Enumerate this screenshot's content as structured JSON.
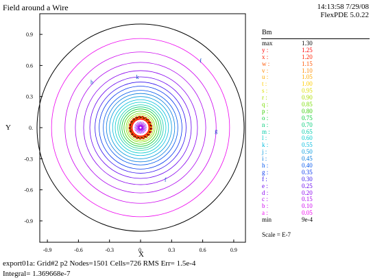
{
  "header": {
    "title": "Field around a Wire",
    "timestamp": "14:13:58 7/29/08",
    "version": "FlexPDE 5.0.22"
  },
  "footer": {
    "line1": "export01a:  Grid#2  p2  Nodes=1501 Cells=726 RMS Err= 1.5e-4",
    "line2": "Integral=  1.369668e-7"
  },
  "legend": {
    "title": "Bm",
    "scale_text": "Scale = E-7",
    "entries": [
      {
        "label": "max",
        "value": "1.30",
        "color": "#000000"
      },
      {
        "label": "y :",
        "value": "1.25",
        "color": "#ff0000"
      },
      {
        "label": "x :",
        "value": "1.20",
        "color": "#ff2200"
      },
      {
        "label": "w :",
        "value": "1.15",
        "color": "#ff5500"
      },
      {
        "label": "v :",
        "value": "1.10",
        "color": "#ff8800"
      },
      {
        "label": "u :",
        "value": "1.05",
        "color": "#ffaa00"
      },
      {
        "label": "t :",
        "value": "1.00",
        "color": "#ffcc00"
      },
      {
        "label": "s :",
        "value": "0.95",
        "color": "#dddd00"
      },
      {
        "label": "r :",
        "value": "0.90",
        "color": "#aadd00"
      },
      {
        "label": "q :",
        "value": "0.85",
        "color": "#77dd00"
      },
      {
        "label": "p :",
        "value": "0.80",
        "color": "#33cc00"
      },
      {
        "label": "o :",
        "value": "0.75",
        "color": "#00cc33"
      },
      {
        "label": "n :",
        "value": "0.70",
        "color": "#00cc77"
      },
      {
        "label": "m :",
        "value": "0.65",
        "color": "#00ccaa"
      },
      {
        "label": "l :",
        "value": "0.60",
        "color": "#00cccc"
      },
      {
        "label": "k :",
        "value": "0.55",
        "color": "#00bbdd"
      },
      {
        "label": "j :",
        "value": "0.50",
        "color": "#0099dd"
      },
      {
        "label": "i :",
        "value": "0.45",
        "color": "#0077dd"
      },
      {
        "label": "h :",
        "value": "0.40",
        "color": "#0055ee"
      },
      {
        "label": "g :",
        "value": "0.35",
        "color": "#0033ee"
      },
      {
        "label": "f :",
        "value": "0.30",
        "color": "#3311ee"
      },
      {
        "label": "e :",
        "value": "0.25",
        "color": "#6600ee"
      },
      {
        "label": "d :",
        "value": "0.20",
        "color": "#8800ee"
      },
      {
        "label": "c :",
        "value": "0.15",
        "color": "#aa00ee"
      },
      {
        "label": "b :",
        "value": "0.10",
        "color": "#cc00ee"
      },
      {
        "label": "a :",
        "value": "0.05",
        "color": "#ee00ee"
      },
      {
        "label": "min",
        "value": "9e-4",
        "color": "#000000"
      }
    ]
  },
  "chart_data": {
    "type": "contour",
    "xlabel": "X",
    "ylabel": "Y",
    "xlim": [
      -1.05,
      1.05
    ],
    "ylim": [
      -1.05,
      1.05
    ],
    "xticks": [
      -0.9,
      -0.6,
      -0.3,
      0,
      0.3,
      0.6,
      0.9
    ],
    "xtick_labels": [
      "-0.9",
      "-0.6",
      "-0.3",
      "0.",
      "0.3",
      "0.6",
      "0.9"
    ],
    "yticks": [
      0.9,
      0.6,
      0.3,
      0,
      -0.3,
      -0.6,
      -0.9
    ],
    "ytick_labels": [
      "0.9",
      "0.6",
      "0.3",
      "0.",
      "-0.3",
      "-0.6",
      "-0.9"
    ],
    "boundary_radius": 1.0,
    "contour_levels": [
      1.25,
      1.2,
      1.15,
      1.1,
      1.05,
      1.0,
      0.95,
      0.9,
      0.85,
      0.8,
      0.75,
      0.7,
      0.65,
      0.6,
      0.55,
      0.5,
      0.45,
      0.4,
      0.35,
      0.3,
      0.25,
      0.2,
      0.15,
      0.1,
      0.05
    ],
    "contour_radii": [
      0.08,
      0.085,
      0.09,
      0.095,
      0.1,
      0.105,
      0.11,
      0.125,
      0.14,
      0.16,
      0.18,
      0.2,
      0.22,
      0.245,
      0.27,
      0.3,
      0.33,
      0.36,
      0.4,
      0.44,
      0.49,
      0.55,
      0.63,
      0.73,
      0.86
    ],
    "contour_labels": [
      {
        "text": "f",
        "x": 0.58,
        "y": 0.63
      },
      {
        "text": "h",
        "x": -0.47,
        "y": 0.42
      },
      {
        "text": "k",
        "x": -0.03,
        "y": 0.47
      },
      {
        "text": "g",
        "x": 0.73,
        "y": -0.05
      },
      {
        "text": "f",
        "x": 0.24,
        "y": -0.52
      }
    ]
  }
}
